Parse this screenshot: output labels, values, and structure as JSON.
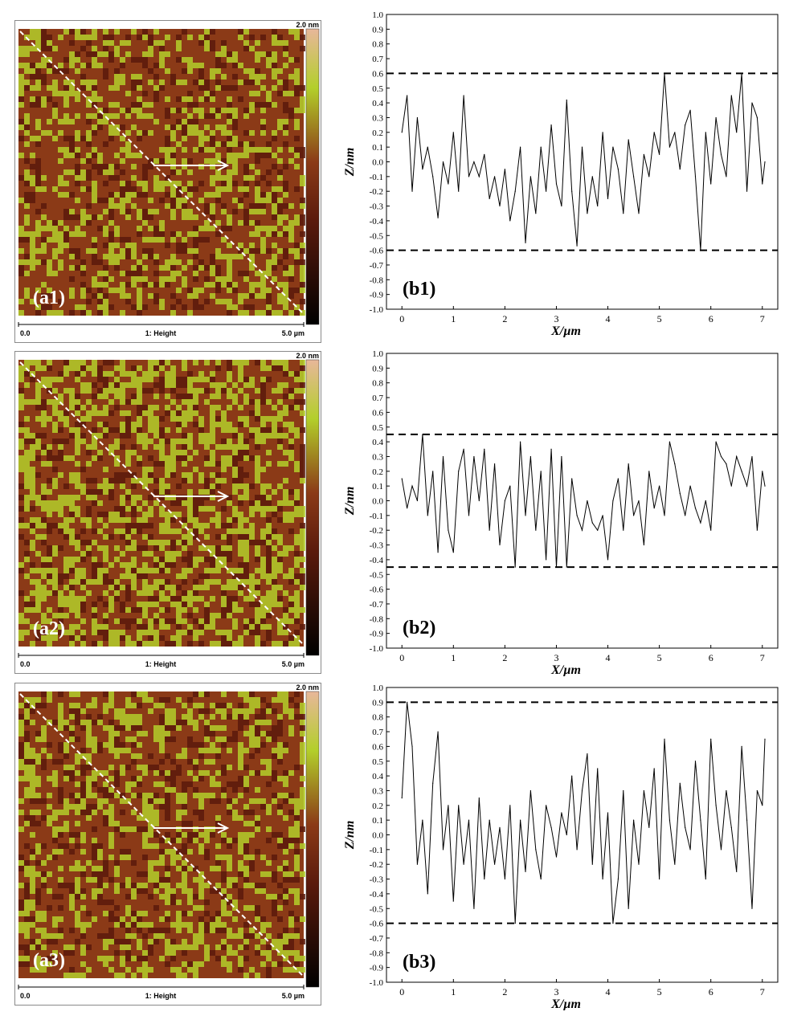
{
  "afm_panels": [
    {
      "label": "(a1)",
      "scale_max": "2.0 nm",
      "scan_start": "0.0",
      "channel": "1: Height",
      "scan_end": "5.0 µm"
    },
    {
      "label": "(a2)",
      "scale_max": "2.0 nm",
      "scan_start": "0.0",
      "channel": "1: Height",
      "scan_end": "5.0 µm"
    },
    {
      "label": "(a3)",
      "scale_max": "2.0 nm",
      "scan_start": "0.0",
      "channel": "1: Height",
      "scan_end": "5.0 µm"
    }
  ],
  "colors": {
    "afm_dark": "#5a1a0c",
    "afm_mid": "#8b3a17",
    "afm_light": "#b3cf2a",
    "trace": "#000000",
    "ref_line": "#000000"
  },
  "chart_data": [
    {
      "type": "line",
      "label": "(b1)",
      "xlabel": "X/µm",
      "ylabel": "Z/nm",
      "xlim": [
        -0.3,
        7.3
      ],
      "ylim": [
        -1.0,
        1.0
      ],
      "xticks": [
        0,
        1,
        2,
        3,
        4,
        5,
        6,
        7
      ],
      "yticks": [
        1.0,
        0.9,
        0.8,
        0.7,
        0.6,
        0.5,
        0.4,
        0.3,
        0.2,
        0.1,
        0.0,
        -0.1,
        -0.2,
        -0.3,
        -0.4,
        -0.5,
        -0.6,
        -0.7,
        -0.8,
        -0.9,
        -1.0
      ],
      "reference_lines": [
        0.6,
        -0.6
      ],
      "x": [
        0,
        0.1,
        0.2,
        0.3,
        0.4,
        0.5,
        0.6,
        0.7,
        0.8,
        0.9,
        1.0,
        1.1,
        1.2,
        1.3,
        1.4,
        1.5,
        1.6,
        1.7,
        1.8,
        1.9,
        2.0,
        2.1,
        2.2,
        2.3,
        2.4,
        2.5,
        2.6,
        2.7,
        2.8,
        2.9,
        3.0,
        3.1,
        3.2,
        3.3,
        3.4,
        3.5,
        3.6,
        3.7,
        3.8,
        3.9,
        4.0,
        4.1,
        4.2,
        4.3,
        4.4,
        4.5,
        4.6,
        4.7,
        4.8,
        4.9,
        5.0,
        5.1,
        5.2,
        5.3,
        5.4,
        5.5,
        5.6,
        5.7,
        5.8,
        5.9,
        6.0,
        6.1,
        6.2,
        6.3,
        6.4,
        6.5,
        6.6,
        6.7,
        6.8,
        6.9,
        7.0,
        7.05
      ],
      "values": [
        0.2,
        0.45,
        -0.2,
        0.3,
        -0.05,
        0.1,
        -0.1,
        -0.38,
        0.0,
        -0.15,
        0.2,
        -0.2,
        0.45,
        -0.1,
        0.0,
        -0.1,
        0.05,
        -0.25,
        -0.1,
        -0.3,
        -0.05,
        -0.4,
        -0.2,
        0.1,
        -0.55,
        -0.1,
        -0.35,
        0.1,
        -0.2,
        0.25,
        -0.15,
        -0.3,
        0.42,
        -0.2,
        -0.57,
        0.1,
        -0.35,
        -0.1,
        -0.3,
        0.2,
        -0.25,
        0.1,
        -0.05,
        -0.35,
        0.15,
        -0.1,
        -0.35,
        0.05,
        -0.1,
        0.2,
        0.05,
        0.6,
        0.1,
        0.2,
        -0.05,
        0.25,
        0.35,
        -0.1,
        -0.6,
        0.2,
        -0.15,
        0.3,
        0.05,
        -0.1,
        0.45,
        0.2,
        0.6,
        -0.2,
        0.4,
        0.3,
        -0.15,
        0.0
      ]
    },
    {
      "type": "line",
      "label": "(b2)",
      "xlabel": "X/µm",
      "ylabel": "Z/nm",
      "xlim": [
        -0.3,
        7.3
      ],
      "ylim": [
        -1.0,
        1.0
      ],
      "xticks": [
        0,
        1,
        2,
        3,
        4,
        5,
        6,
        7
      ],
      "yticks": [
        1.0,
        0.9,
        0.8,
        0.7,
        0.6,
        0.5,
        0.4,
        0.3,
        0.2,
        0.1,
        0.0,
        -0.1,
        -0.2,
        -0.3,
        -0.4,
        -0.5,
        -0.6,
        -0.7,
        -0.8,
        -0.9,
        -1.0
      ],
      "reference_lines": [
        0.45,
        -0.45
      ],
      "x": [
        0,
        0.1,
        0.2,
        0.3,
        0.4,
        0.5,
        0.6,
        0.7,
        0.8,
        0.9,
        1.0,
        1.1,
        1.2,
        1.3,
        1.4,
        1.5,
        1.6,
        1.7,
        1.8,
        1.9,
        2.0,
        2.1,
        2.2,
        2.3,
        2.4,
        2.5,
        2.6,
        2.7,
        2.8,
        2.9,
        3.0,
        3.1,
        3.2,
        3.3,
        3.4,
        3.5,
        3.6,
        3.7,
        3.8,
        3.9,
        4.0,
        4.1,
        4.2,
        4.3,
        4.4,
        4.5,
        4.6,
        4.7,
        4.8,
        4.9,
        5.0,
        5.1,
        5.2,
        5.3,
        5.4,
        5.5,
        5.6,
        5.7,
        5.8,
        5.9,
        6.0,
        6.1,
        6.2,
        6.3,
        6.4,
        6.5,
        6.6,
        6.7,
        6.8,
        6.9,
        7.0,
        7.05
      ],
      "values": [
        0.15,
        -0.05,
        0.1,
        0.0,
        0.45,
        -0.1,
        0.2,
        -0.35,
        0.3,
        -0.2,
        -0.35,
        0.2,
        0.35,
        -0.1,
        0.3,
        0.0,
        0.35,
        -0.2,
        0.25,
        -0.3,
        0.0,
        0.1,
        -0.45,
        0.4,
        -0.1,
        0.3,
        -0.2,
        0.2,
        -0.4,
        0.35,
        -0.45,
        0.3,
        -0.45,
        0.15,
        -0.1,
        -0.2,
        0.0,
        -0.15,
        -0.2,
        -0.1,
        -0.4,
        0.0,
        0.15,
        -0.2,
        0.25,
        -0.1,
        0.0,
        -0.3,
        0.2,
        -0.05,
        0.1,
        -0.1,
        0.4,
        0.25,
        0.05,
        -0.1,
        0.1,
        -0.05,
        -0.15,
        0.0,
        -0.2,
        0.4,
        0.3,
        0.25,
        0.1,
        0.3,
        0.2,
        0.1,
        0.3,
        -0.2,
        0.2,
        0.1
      ]
    },
    {
      "type": "line",
      "label": "(b3)",
      "xlabel": "X/µm",
      "ylabel": "Z/nm",
      "xlim": [
        -0.3,
        7.3
      ],
      "ylim": [
        -1.0,
        1.0
      ],
      "xticks": [
        0,
        1,
        2,
        3,
        4,
        5,
        6,
        7
      ],
      "yticks": [
        1.0,
        0.9,
        0.8,
        0.7,
        0.6,
        0.5,
        0.4,
        0.3,
        0.2,
        0.1,
        0.0,
        -0.1,
        -0.2,
        -0.3,
        -0.4,
        -0.5,
        -0.6,
        -0.7,
        -0.8,
        -0.9,
        -1.0
      ],
      "reference_lines": [
        0.9,
        -0.6
      ],
      "x": [
        0,
        0.1,
        0.2,
        0.3,
        0.4,
        0.5,
        0.6,
        0.7,
        0.8,
        0.9,
        1.0,
        1.1,
        1.2,
        1.3,
        1.4,
        1.5,
        1.6,
        1.7,
        1.8,
        1.9,
        2.0,
        2.1,
        2.2,
        2.3,
        2.4,
        2.5,
        2.6,
        2.7,
        2.8,
        2.9,
        3.0,
        3.1,
        3.2,
        3.3,
        3.4,
        3.5,
        3.6,
        3.7,
        3.8,
        3.9,
        4.0,
        4.1,
        4.2,
        4.3,
        4.4,
        4.5,
        4.6,
        4.7,
        4.8,
        4.9,
        5.0,
        5.1,
        5.2,
        5.3,
        5.4,
        5.5,
        5.6,
        5.7,
        5.8,
        5.9,
        6.0,
        6.1,
        6.2,
        6.3,
        6.4,
        6.5,
        6.6,
        6.7,
        6.8,
        6.9,
        7.0,
        7.05
      ],
      "values": [
        0.25,
        0.9,
        0.6,
        -0.2,
        0.1,
        -0.4,
        0.35,
        0.7,
        -0.1,
        0.2,
        -0.45,
        0.2,
        -0.2,
        0.1,
        -0.5,
        0.25,
        -0.3,
        0.1,
        -0.2,
        0.05,
        -0.3,
        0.2,
        -0.6,
        0.1,
        -0.25,
        0.3,
        -0.1,
        -0.3,
        0.2,
        0.05,
        -0.15,
        0.15,
        0.0,
        0.4,
        -0.1,
        0.3,
        0.55,
        -0.2,
        0.45,
        -0.3,
        0.15,
        -0.6,
        -0.3,
        0.3,
        -0.5,
        0.1,
        -0.2,
        0.3,
        0.05,
        0.45,
        -0.3,
        0.65,
        0.1,
        -0.2,
        0.35,
        0.05,
        -0.1,
        0.5,
        0.1,
        -0.3,
        0.65,
        0.2,
        -0.1,
        0.3,
        0.05,
        -0.25,
        0.6,
        0.1,
        -0.5,
        0.3,
        0.2,
        0.65
      ]
    }
  ]
}
